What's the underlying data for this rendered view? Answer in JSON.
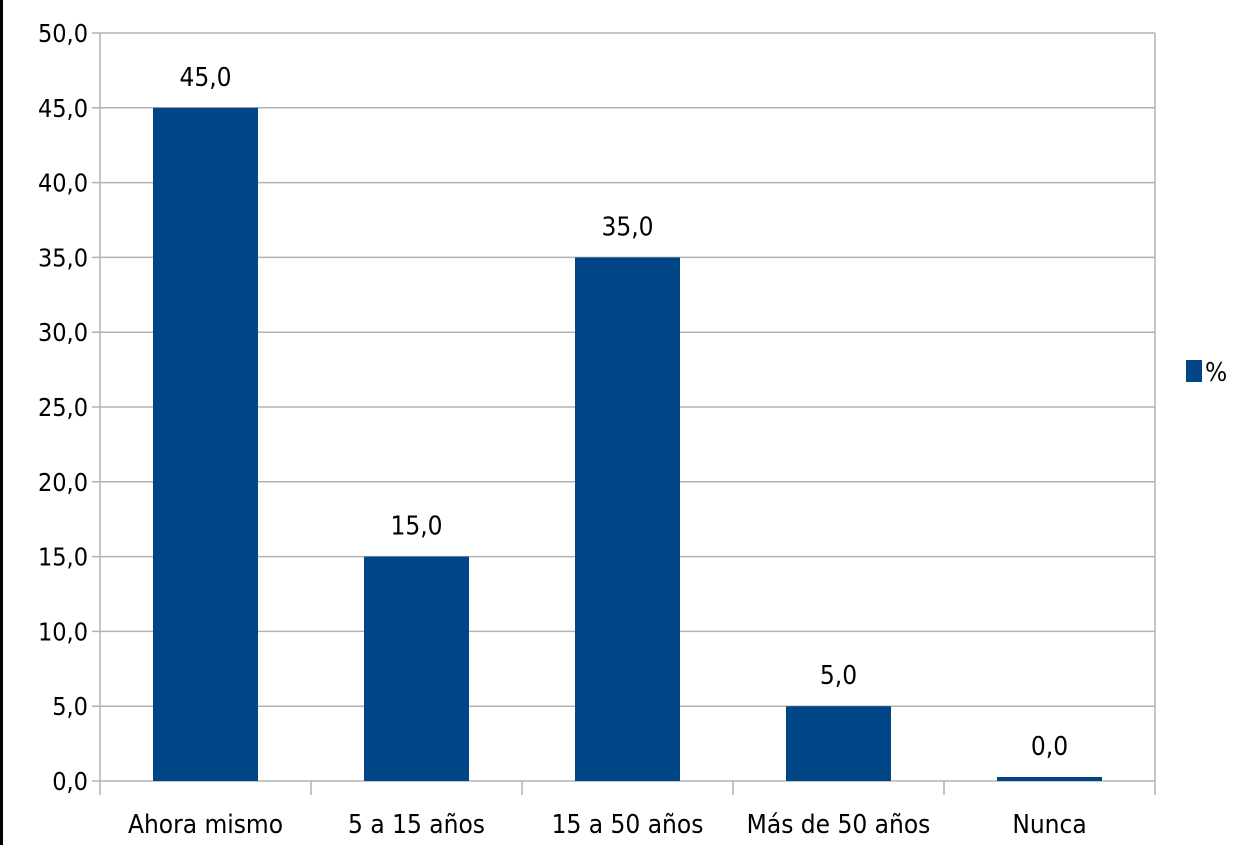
{
  "chart_data": {
    "type": "bar",
    "categories": [
      "Ahora mismo",
      "5 a 15 años",
      "15 a 50 años",
      "Más de 50 años",
      "Nunca"
    ],
    "series": [
      {
        "name": "%",
        "values": [
          45.0,
          15.0,
          35.0,
          5.0,
          0.0
        ],
        "color": "#004586"
      }
    ],
    "data_labels": [
      "45,0",
      "15,0",
      "35,0",
      "5,0",
      "0,0"
    ],
    "y_ticks": [
      "0,0",
      "5,0",
      "10,0",
      "15,0",
      "20,0",
      "25,0",
      "30,0",
      "35,0",
      "40,0",
      "45,0",
      "50,0"
    ],
    "ylim": [
      0,
      50
    ],
    "y_step": 5,
    "grid": true,
    "legend_position": "right",
    "colors": {
      "bar": "#004586",
      "grid": "#b3b3b3",
      "axis": "#b3b3b3"
    }
  }
}
